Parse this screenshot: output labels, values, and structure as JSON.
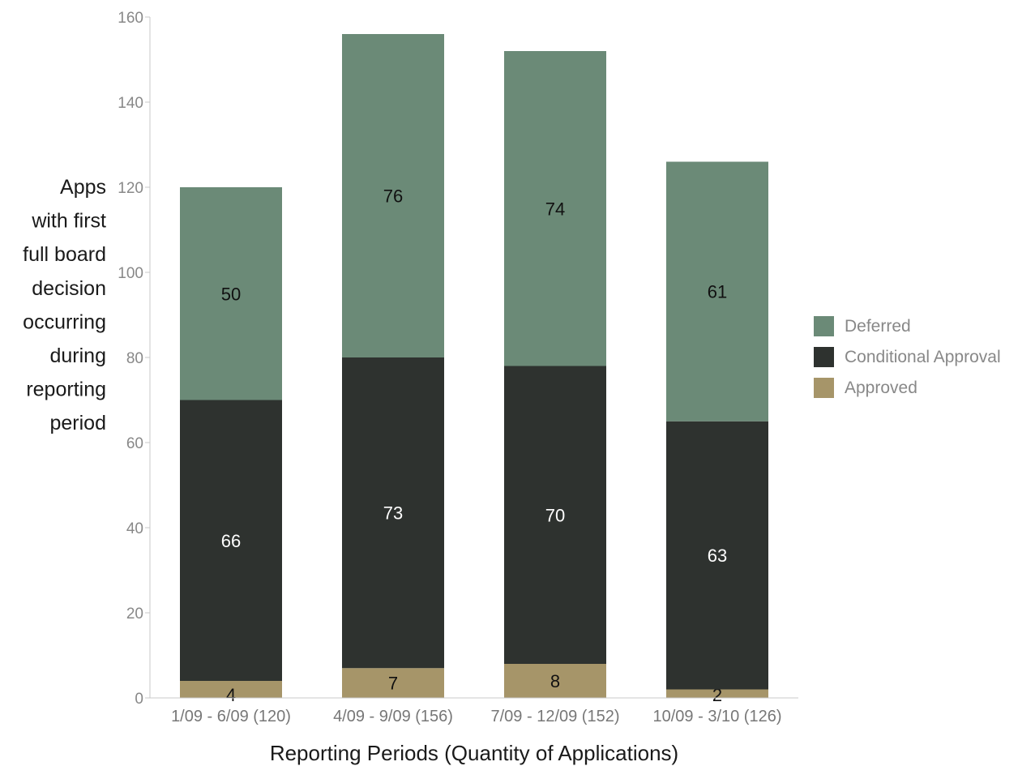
{
  "chart_data": {
    "type": "bar",
    "stacked": true,
    "categories": [
      "1/09 - 6/09 (120)",
      "4/09 - 9/09 (156)",
      "7/09 - 12/09 (152)",
      "10/09 - 3/10 (126)"
    ],
    "series": [
      {
        "name": "Approved",
        "values": [
          4,
          7,
          8,
          2
        ],
        "color": "#a69569"
      },
      {
        "name": "Conditional Approval",
        "values": [
          66,
          73,
          70,
          63
        ],
        "color": "#2e322f"
      },
      {
        "name": "Deferred",
        "values": [
          50,
          76,
          74,
          61
        ],
        "color": "#6b8a77"
      }
    ],
    "legend_order": [
      "Deferred",
      "Conditional Approval",
      "Approved"
    ],
    "legend_position": "right",
    "xlabel": "Reporting Periods (Quantity of Applications)",
    "ylabel_lines": [
      "Apps",
      "with first",
      "full board",
      "decision",
      "occurring",
      "during",
      "reporting",
      "period"
    ],
    "ylim": [
      0,
      160
    ],
    "yticks": [
      0,
      20,
      40,
      60,
      80,
      100,
      120,
      140,
      160
    ],
    "grid": false,
    "value_label_colors": {
      "Approved": "#111111",
      "Conditional Approval": "#ffffff",
      "Deferred": "#111111"
    }
  }
}
